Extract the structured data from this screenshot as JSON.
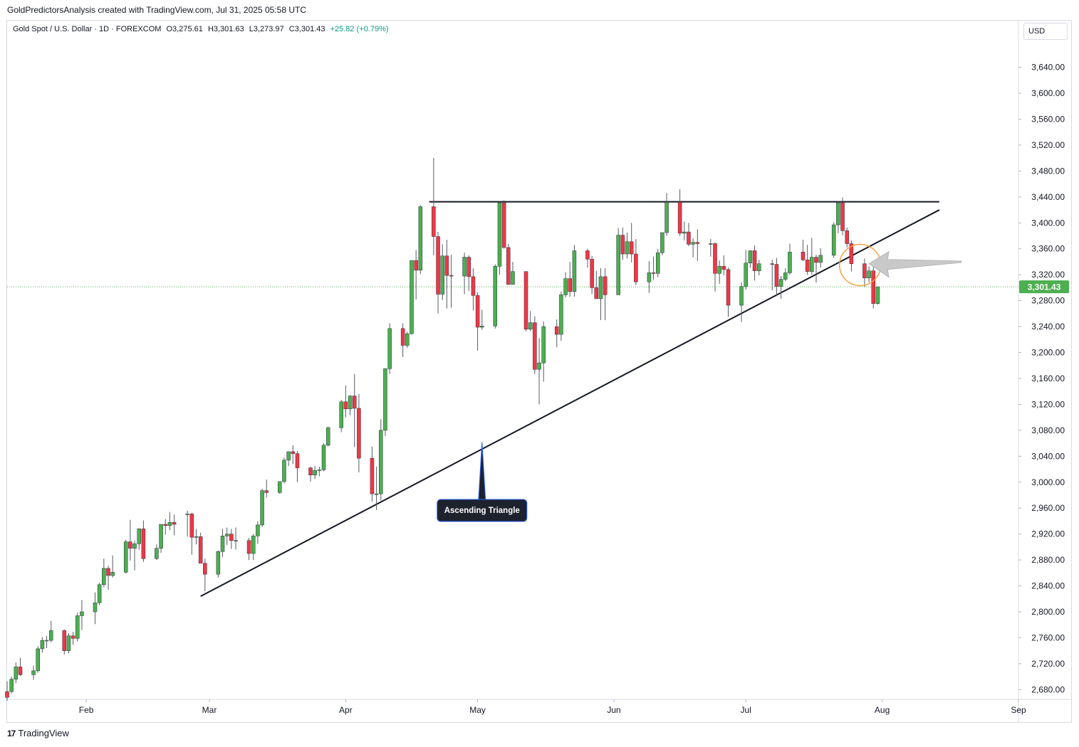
{
  "attribution": "GoldPredictorsAnalysis created with TradingView.com, Jul 31, 2025 05:58 UTC",
  "legend": {
    "symbol": "Gold Spot / U.S. Dollar · 1D · FOREXCOM",
    "open": "O3,275.61",
    "high": "H3,301.63",
    "low": "L3,273.97",
    "close": "C3,301.43",
    "change": "+25.82 (+0.79%)"
  },
  "currency": "USD",
  "footer": {
    "brand": "TradingView",
    "logo_icon": "tradingview-logo-icon"
  },
  "colors": {
    "up": "#4caf50",
    "down": "#f23645",
    "last_price": "#4caf50",
    "circle": "#f5a142",
    "arrow": "#b5b5b5",
    "label_bg": "#1e222d",
    "label_border": "#2962ff"
  },
  "chart_data": {
    "type": "candlestick",
    "title": "Gold Spot / U.S. Dollar",
    "timeframe": "1D",
    "y_axis": {
      "ylim": [
        2665,
        3712
      ],
      "tick_labels": [
        "3,640.00",
        "3,600.00",
        "3,560.00",
        "3,520.00",
        "3,480.00",
        "3,440.00",
        "3,400.00",
        "3,360.00",
        "3,320.00",
        "3,280.00",
        "3,240.00",
        "3,200.00",
        "3,160.00",
        "3,120.00",
        "3,080.00",
        "3,040.00",
        "3,000.00",
        "2,960.00",
        "2,920.00",
        "2,880.00",
        "2,840.00",
        "2,800.00",
        "2,760.00",
        "2,720.00",
        "2,680.00"
      ]
    },
    "x_axis": {
      "xlim": [
        "2025-01-14",
        "2025-09-01"
      ],
      "months": [
        {
          "label": "Feb",
          "date": "2025-02-01"
        },
        {
          "label": "Mar",
          "date": "2025-03-01"
        },
        {
          "label": "Apr",
          "date": "2025-04-01"
        },
        {
          "label": "May",
          "date": "2025-05-01"
        },
        {
          "label": "Jun",
          "date": "2025-06-01"
        },
        {
          "label": "Jul",
          "date": "2025-07-01"
        },
        {
          "label": "Aug",
          "date": "2025-08-01"
        },
        {
          "label": "Sep",
          "date": "2025-09-01"
        }
      ]
    },
    "last_price": 3301.43,
    "last_price_label": "3,301.43",
    "candles": [
      [
        "2025-01-14",
        2677,
        2693,
        2663,
        2668
      ],
      [
        "2025-01-15",
        2677,
        2700,
        2674,
        2696
      ],
      [
        "2025-01-16",
        2696,
        2722,
        2690,
        2715
      ],
      [
        "2025-01-17",
        2715,
        2729,
        2701,
        2703
      ],
      [
        "2025-01-20",
        2703,
        2717,
        2695,
        2709
      ],
      [
        "2025-01-21",
        2709,
        2747,
        2706,
        2743
      ],
      [
        "2025-01-22",
        2743,
        2761,
        2737,
        2756
      ],
      [
        "2025-01-23",
        2756,
        2763,
        2744,
        2756
      ],
      [
        "2025-01-24",
        2756,
        2786,
        2753,
        2771
      ],
      [
        "2025-01-27",
        2771,
        2773,
        2734,
        2740
      ],
      [
        "2025-01-28",
        2740,
        2767,
        2736,
        2763
      ],
      [
        "2025-01-29",
        2763,
        2769,
        2749,
        2759
      ],
      [
        "2025-01-30",
        2759,
        2799,
        2754,
        2794
      ],
      [
        "2025-01-31",
        2794,
        2818,
        2772,
        2800
      ],
      [
        "2025-02-03",
        2800,
        2830,
        2781,
        2814
      ],
      [
        "2025-02-04",
        2814,
        2845,
        2810,
        2842
      ],
      [
        "2025-02-05",
        2842,
        2882,
        2838,
        2867
      ],
      [
        "2025-02-06",
        2867,
        2871,
        2834,
        2856
      ],
      [
        "2025-02-07",
        2856,
        2887,
        2853,
        2861
      ],
      [
        "2025-02-10",
        2861,
        2911,
        2859,
        2908
      ],
      [
        "2025-02-11",
        2908,
        2942,
        2879,
        2898
      ],
      [
        "2025-02-12",
        2898,
        2910,
        2864,
        2905
      ],
      [
        "2025-02-13",
        2905,
        2929,
        2896,
        2928
      ],
      [
        "2025-02-14",
        2928,
        2941,
        2877,
        2882
      ],
      [
        "2025-02-17",
        2882,
        2904,
        2880,
        2898
      ],
      [
        "2025-02-18",
        2898,
        2935,
        2891,
        2935
      ],
      [
        "2025-02-19",
        2935,
        2943,
        2919,
        2933
      ],
      [
        "2025-02-20",
        2933,
        2954,
        2926,
        2938
      ],
      [
        "2025-02-21",
        2938,
        2950,
        2918,
        2935
      ],
      [
        "2025-02-24",
        2951,
        2956,
        2916,
        2951
      ],
      [
        "2025-02-25",
        2951,
        2953,
        2888,
        2915
      ],
      [
        "2025-02-26",
        2915,
        2928,
        2904,
        2916
      ],
      [
        "2025-02-27",
        2916,
        2922,
        2877,
        2875
      ],
      [
        "2025-02-28",
        2875,
        2882,
        2832,
        2858
      ],
      [
        "2025-03-03",
        2858,
        2895,
        2853,
        2893
      ],
      [
        "2025-03-04",
        2893,
        2928,
        2885,
        2917
      ],
      [
        "2025-03-05",
        2917,
        2930,
        2903,
        2920
      ],
      [
        "2025-03-06",
        2920,
        2928,
        2897,
        2910
      ],
      [
        "2025-03-07",
        2910,
        2930,
        2896,
        2910
      ],
      [
        "2025-03-10",
        2910,
        2914,
        2880,
        2890
      ],
      [
        "2025-03-11",
        2890,
        2920,
        2880,
        2917
      ],
      [
        "2025-03-12",
        2917,
        2940,
        2905,
        2934
      ],
      [
        "2025-03-13",
        2934,
        2990,
        2931,
        2987
      ],
      [
        "2025-03-14",
        2987,
        3004,
        2976,
        2984
      ],
      [
        "2025-03-17",
        2984,
        3001,
        2982,
        3001
      ],
      [
        "2025-03-18",
        3001,
        3038,
        2998,
        3034
      ],
      [
        "2025-03-19",
        3034,
        3047,
        3025,
        3047
      ],
      [
        "2025-03-20",
        3047,
        3057,
        3028,
        3044
      ],
      [
        "2025-03-21",
        3044,
        3048,
        3000,
        3022
      ],
      [
        "2025-03-24",
        3022,
        3024,
        3001,
        3011
      ],
      [
        "2025-03-25",
        3011,
        3025,
        3005,
        3018
      ],
      [
        "2025-03-26",
        3018,
        3024,
        3009,
        3019
      ],
      [
        "2025-03-27",
        3019,
        3060,
        3017,
        3057
      ],
      [
        "2025-03-28",
        3057,
        3086,
        3055,
        3084
      ],
      [
        "2025-03-31",
        3084,
        3127,
        3077,
        3124
      ],
      [
        "2025-04-01",
        3124,
        3149,
        3100,
        3113
      ],
      [
        "2025-04-02",
        3113,
        3134,
        3103,
        3133
      ],
      [
        "2025-04-03",
        3133,
        3167,
        3054,
        3114
      ],
      [
        "2025-04-04",
        3114,
        3136,
        3015,
        3037
      ],
      [
        "2025-04-07",
        3037,
        3055,
        2970,
        2982
      ],
      [
        "2025-04-08",
        2982,
        3024,
        2957,
        2982
      ],
      [
        "2025-04-09",
        2982,
        3097,
        2972,
        3080
      ],
      [
        "2025-04-10",
        3080,
        3176,
        3071,
        3175
      ],
      [
        "2025-04-11",
        3175,
        3245,
        3167,
        3237
      ],
      [
        "2025-04-14",
        3237,
        3245,
        3193,
        3211
      ],
      [
        "2025-04-15",
        3211,
        3232,
        3207,
        3229
      ],
      [
        "2025-04-16",
        3229,
        3335,
        3228,
        3342
      ],
      [
        "2025-04-17",
        3342,
        3358,
        3282,
        3327
      ],
      [
        "2025-04-18",
        3327,
        3427,
        3321,
        3425
      ],
      [
        "2025-04-21",
        3425,
        3500,
        3350,
        3379
      ],
      [
        "2025-04-22",
        3379,
        3386,
        3260,
        3290
      ],
      [
        "2025-04-23",
        3290,
        3367,
        3281,
        3349
      ],
      [
        "2025-04-24",
        3349,
        3374,
        3268,
        3319
      ],
      [
        "2025-04-25",
        3319,
        3351,
        3269,
        3318
      ],
      [
        "2025-04-28",
        3318,
        3354,
        3290,
        3347
      ],
      [
        "2025-04-29",
        3347,
        3350,
        3295,
        3317
      ],
      [
        "2025-04-30",
        3317,
        3330,
        3265,
        3288
      ],
      [
        "2025-05-01",
        3288,
        3293,
        3203,
        3239
      ],
      [
        "2025-05-02",
        3239,
        3266,
        3235,
        3241
      ],
      [
        "2025-05-05",
        3241,
        3336,
        3237,
        3333
      ],
      [
        "2025-05-06",
        3333,
        3433,
        3320,
        3431
      ],
      [
        "2025-05-07",
        3431,
        3435,
        3360,
        3362
      ],
      [
        "2025-05-08",
        3362,
        3368,
        3307,
        3305
      ],
      [
        "2025-05-09",
        3305,
        3340,
        3305,
        3325
      ],
      [
        "2025-05-12",
        3325,
        3322,
        3233,
        3236
      ],
      [
        "2025-05-13",
        3236,
        3264,
        3233,
        3246
      ],
      [
        "2025-05-14",
        3246,
        3256,
        3167,
        3174
      ],
      [
        "2025-05-15",
        3174,
        3222,
        3120,
        3184
      ],
      [
        "2025-05-16",
        3184,
        3248,
        3155,
        3240
      ],
      [
        "2025-05-19",
        3240,
        3251,
        3208,
        3228
      ],
      [
        "2025-05-20",
        3228,
        3294,
        3218,
        3289
      ],
      [
        "2025-05-21",
        3289,
        3324,
        3285,
        3314
      ],
      [
        "2025-05-22",
        3314,
        3340,
        3286,
        3294
      ],
      [
        "2025-05-23",
        3294,
        3366,
        3286,
        3357
      ],
      [
        "2025-05-26",
        3357,
        3360,
        3331,
        3344
      ],
      [
        "2025-05-27",
        3344,
        3349,
        3290,
        3300
      ],
      [
        "2025-05-28",
        3300,
        3326,
        3290,
        3283
      ],
      [
        "2025-05-29",
        3283,
        3330,
        3250,
        3317
      ],
      [
        "2025-05-30",
        3317,
        3330,
        3250,
        3289
      ],
      [
        "2025-06-02",
        3289,
        3392,
        3289,
        3381
      ],
      [
        "2025-06-03",
        3381,
        3393,
        3343,
        3352
      ],
      [
        "2025-06-04",
        3352,
        3385,
        3345,
        3371
      ],
      [
        "2025-06-05",
        3371,
        3400,
        3339,
        3352
      ],
      [
        "2025-06-06",
        3352,
        3375,
        3304,
        3309
      ],
      [
        "2025-06-09",
        3309,
        3341,
        3292,
        3323
      ],
      [
        "2025-06-10",
        3323,
        3348,
        3312,
        3322
      ],
      [
        "2025-06-11",
        3322,
        3360,
        3316,
        3354
      ],
      [
        "2025-06-12",
        3354,
        3385,
        3350,
        3385
      ],
      [
        "2025-06-13",
        3385,
        3446,
        3380,
        3432
      ],
      [
        "2025-06-16",
        3432,
        3452,
        3380,
        3384
      ],
      [
        "2025-06-17",
        3384,
        3402,
        3373,
        3386
      ],
      [
        "2025-06-18",
        3386,
        3400,
        3364,
        3367
      ],
      [
        "2025-06-19",
        3367,
        3376,
        3347,
        3370
      ],
      [
        "2025-06-20",
        3370,
        3390,
        3341,
        3368
      ],
      [
        "2025-06-23",
        3368,
        3375,
        3348,
        3368
      ],
      [
        "2025-06-24",
        3368,
        3370,
        3294,
        3322
      ],
      [
        "2025-06-25",
        3322,
        3342,
        3306,
        3333
      ],
      [
        "2025-06-26",
        3333,
        3350,
        3319,
        3328
      ],
      [
        "2025-06-27",
        3328,
        3331,
        3255,
        3273
      ],
      [
        "2025-06-30",
        3273,
        3308,
        3247,
        3302
      ],
      [
        "2025-07-01",
        3302,
        3358,
        3297,
        3338
      ],
      [
        "2025-07-02",
        3338,
        3358,
        3331,
        3357
      ],
      [
        "2025-07-03",
        3357,
        3365,
        3311,
        3326
      ],
      [
        "2025-07-04",
        3326,
        3343,
        3319,
        3337
      ],
      [
        "2025-07-07",
        3337,
        3343,
        3296,
        3336
      ],
      [
        "2025-07-08",
        3336,
        3346,
        3287,
        3302
      ],
      [
        "2025-07-09",
        3302,
        3318,
        3283,
        3313
      ],
      [
        "2025-07-10",
        3313,
        3330,
        3310,
        3323
      ],
      [
        "2025-07-11",
        3323,
        3368,
        3320,
        3355
      ],
      [
        "2025-07-14",
        3355,
        3374,
        3341,
        3343
      ],
      [
        "2025-07-15",
        3343,
        3366,
        3320,
        3325
      ],
      [
        "2025-07-16",
        3325,
        3377,
        3320,
        3347
      ],
      [
        "2025-07-17",
        3347,
        3351,
        3308,
        3339
      ],
      [
        "2025-07-18",
        3339,
        3361,
        3331,
        3350
      ],
      [
        "2025-07-21",
        3350,
        3401,
        3346,
        3397
      ],
      [
        "2025-07-22",
        3397,
        3433,
        3384,
        3431
      ],
      [
        "2025-07-23",
        3431,
        3439,
        3381,
        3388
      ],
      [
        "2025-07-24",
        3388,
        3393,
        3362,
        3368
      ],
      [
        "2025-07-25",
        3368,
        3373,
        3325,
        3337
      ],
      [
        "2025-07-28",
        3337,
        3345,
        3301,
        3315
      ],
      [
        "2025-07-29",
        3315,
        3333,
        3308,
        3326
      ],
      [
        "2025-07-30",
        3326,
        3334,
        3268,
        3275.61
      ],
      [
        "2025-07-31",
        3275.61,
        3301.63,
        3273.97,
        3301.43
      ]
    ],
    "drawings": {
      "resistance_line": {
        "from": [
          "2025-04-20",
          3432.5
        ],
        "to": [
          "2025-08-14",
          3432.5
        ]
      },
      "support_line": {
        "from": [
          "2025-02-27",
          2824
        ],
        "to": [
          "2025-08-14",
          3420
        ]
      },
      "circle_center": [
        "2025-07-27",
        3335
      ],
      "arrow": {
        "from": [
          "2025-08-19",
          3340
        ],
        "to": [
          "2025-07-29",
          3337
        ]
      },
      "callout": {
        "text": "Ascending Triangle",
        "anchor": [
          "2025-05-02",
          3062
        ]
      }
    }
  }
}
